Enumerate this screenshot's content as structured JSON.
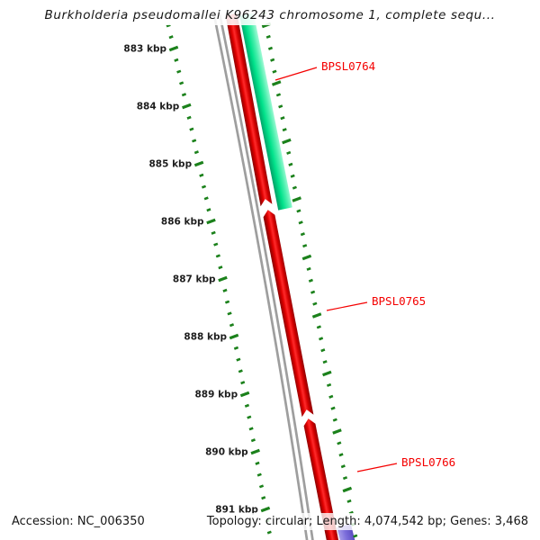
{
  "title": "Burkholderia pseudomallei K96243 chromosome 1, complete sequ...",
  "status_bar": {
    "accession": "Accession: NC_006350",
    "details": "Topology: circular; Length: 4,074,542 bp; Genes: 3,468"
  },
  "ruler": {
    "unit": "kbp",
    "labels": [
      "883 kbp",
      "884 kbp",
      "885 kbp",
      "886 kbp",
      "887 kbp",
      "888 kbp",
      "889 kbp",
      "890 kbp",
      "891 kbp"
    ]
  },
  "genes": [
    {
      "label": "BPSL0764",
      "color": "#00DC87"
    },
    {
      "label": "BPSL0765",
      "color": "#F20000"
    },
    {
      "label": "BPSL0766",
      "color": "#F20000"
    }
  ],
  "colors": {
    "tick": "#1B811B",
    "gene_label": "#F40000",
    "callout_line": "#F40000",
    "backbone": "#9E9E9E",
    "reverse_gene": "#F20000",
    "forward_gene": "#00DC87",
    "other_gene": "#7A6CDA",
    "text": "#161616"
  }
}
